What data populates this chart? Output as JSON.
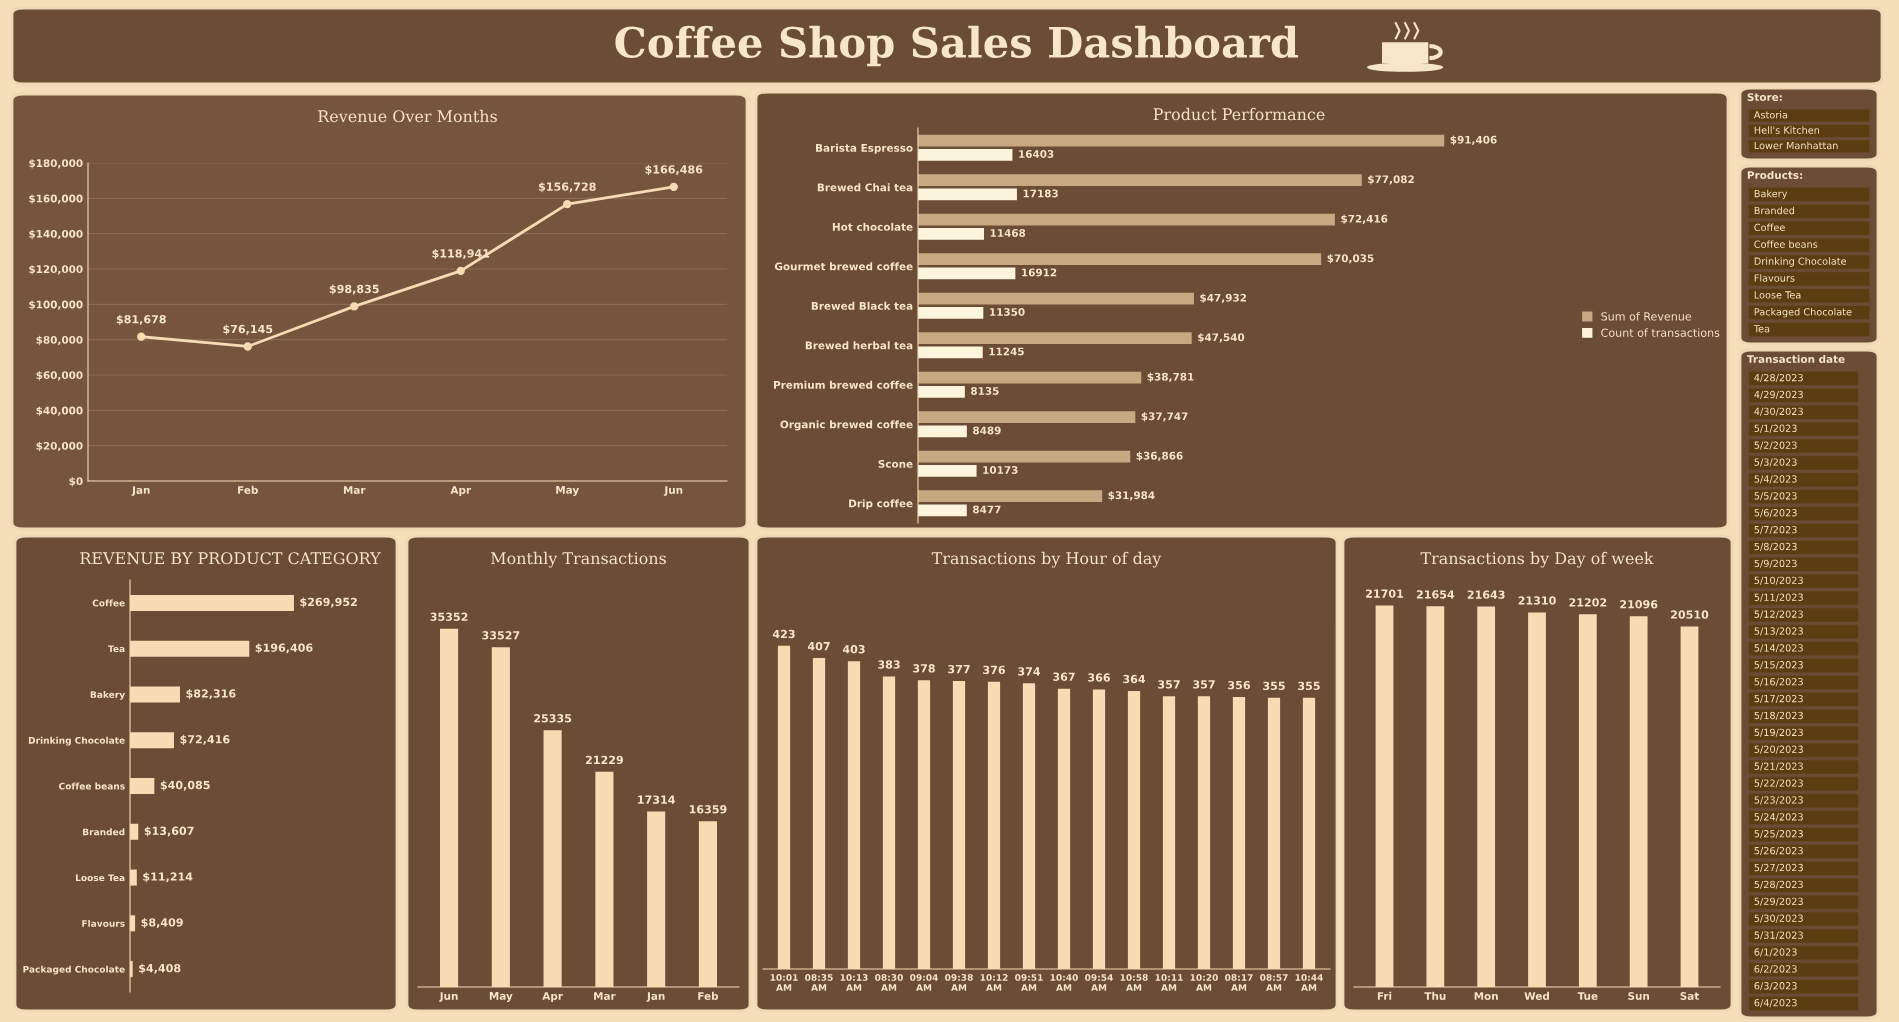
{
  "chart_data": [
    {
      "type": "other",
      "title": "Coffee Shop Sales Dashboard"
    },
    {
      "type": "line",
      "title": "Revenue Over Months",
      "categories": [
        "Jan",
        "Feb",
        "Mar",
        "Apr",
        "May",
        "Jun"
      ],
      "series": [
        {
          "color": "#f5dcb4",
          "values": [
            81678,
            76145,
            98835,
            118941,
            156728,
            166486
          ],
          "value_labels": [
            "$81,678",
            "$76,145",
            "$98,835",
            "$118,941",
            "$156,728",
            "$166,486"
          ]
        }
      ],
      "ylim": [
        0,
        180000
      ],
      "yticks": [
        {
          "value": 0,
          "label": "$0"
        },
        {
          "value": 20000,
          "label": "$20,000"
        },
        {
          "value": 40000,
          "label": "$40,000"
        },
        {
          "value": 60000,
          "label": "$60,000"
        },
        {
          "value": 80000,
          "label": "$80,000"
        },
        {
          "value": 100000,
          "label": "$100,000"
        },
        {
          "value": 120000,
          "label": "$120,000"
        },
        {
          "value": 140000,
          "label": "$140,000"
        },
        {
          "value": 160000,
          "label": "$160,000"
        },
        {
          "value": 180000,
          "label": "$180,000"
        }
      ],
      "grid": "y",
      "marker": "circle",
      "line_style": "solid"
    },
    {
      "type": "bar",
      "orientation": "horizontal",
      "title": "Product Performance",
      "categories": [
        "Barista Espresso",
        "Brewed Chai tea",
        "Hot chocolate",
        "Gourmet brewed coffee",
        "Brewed Black tea",
        "Brewed herbal tea",
        "Premium brewed coffee",
        "Organic brewed coffee",
        "Scone",
        "Drip coffee"
      ],
      "series": [
        {
          "name": "Sum of Revenue",
          "color": "#c8a882",
          "values": [
            91406,
            77082,
            72416,
            70035,
            47932,
            47540,
            38781,
            37747,
            36866,
            31984
          ],
          "value_labels": [
            "$91,406",
            "$77,082",
            "$72,416",
            "$70,035",
            "$47,932",
            "$47,540",
            "$38,781",
            "$37,747",
            "$36,866",
            "$31,984"
          ]
        },
        {
          "name": "Count of transactions",
          "color": "#fdf4de",
          "values": [
            16403,
            17183,
            11468,
            16912,
            11350,
            11245,
            8135,
            8489,
            10173,
            8477
          ],
          "value_labels": [
            "16403",
            "17183",
            "11468",
            "16912",
            "11350",
            "11245",
            "8135",
            "8489",
            "10173",
            "8477"
          ]
        }
      ],
      "legend": "right"
    },
    {
      "type": "other",
      "title": "Store:",
      "annotations": [
        "Astoria",
        "Hell's Kitchen",
        "Lower Manhattan"
      ]
    },
    {
      "type": "other",
      "title": "Products:",
      "annotations": [
        "Bakery",
        "Branded",
        "Coffee",
        "Coffee beans",
        "Drinking Chocolate",
        "Flavours",
        "Loose Tea",
        "Packaged Chocolate",
        "Tea"
      ]
    },
    {
      "type": "other",
      "title": "Transaction date",
      "annotations": [
        "4/28/2023",
        "4/29/2023",
        "4/30/2023",
        "5/1/2023",
        "5/2/2023",
        "5/3/2023",
        "5/4/2023",
        "5/5/2023",
        "5/6/2023",
        "5/7/2023",
        "5/8/2023",
        "5/9/2023",
        "5/10/2023",
        "5/11/2023",
        "5/12/2023",
        "5/13/2023",
        "5/14/2023",
        "5/15/2023",
        "5/16/2023",
        "5/17/2023",
        "5/18/2023",
        "5/19/2023",
        "5/20/2023",
        "5/21/2023",
        "5/22/2023",
        "5/23/2023",
        "5/24/2023",
        "5/25/2023",
        "5/26/2023",
        "5/27/2023",
        "5/28/2023",
        "5/29/2023",
        "5/30/2023",
        "5/31/2023",
        "6/1/2023",
        "6/2/2023",
        "6/3/2023",
        "6/4/2023"
      ]
    },
    {
      "type": "bar",
      "orientation": "horizontal",
      "title": "REVENUE BY PRODUCT CATEGORY",
      "categories": [
        "Coffee",
        "Tea",
        "Bakery",
        "Drinking Chocolate",
        "Coffee beans",
        "Branded",
        "Loose Tea",
        "Flavours",
        "Packaged Chocolate"
      ],
      "values": [
        269952,
        196406,
        82316,
        72416,
        40085,
        13607,
        11214,
        8409,
        4408
      ],
      "color": "#f5dcb4",
      "value_labels": [
        "$269,952",
        "$196,406",
        "$82,316",
        "$72,416",
        "$40,085",
        "$13,607",
        "$11,214",
        "$8,409",
        "$4,408"
      ]
    },
    {
      "type": "bar",
      "title": "Monthly Transactions",
      "categories": [
        "Jun",
        "May",
        "Apr",
        "Mar",
        "Jan",
        "Feb"
      ],
      "values": [
        35352,
        33527,
        25335,
        21229,
        17314,
        16359
      ],
      "color": "#f5dcb4",
      "data_labels": true
    },
    {
      "type": "bar",
      "title": "Transactions by Hour of day",
      "categories": [
        "10:01 AM",
        "08:35 AM",
        "10:13 AM",
        "08:30 AM",
        "09:04 AM",
        "09:38 AM",
        "10:12 AM",
        "09:51 AM",
        "10:40 AM",
        "09:54 AM",
        "10:58 AM",
        "10:11 AM",
        "10:20 AM",
        "08:17 AM",
        "08:57 AM",
        "10:44 AM"
      ],
      "values": [
        423,
        407,
        403,
        383,
        378,
        377,
        376,
        374,
        367,
        366,
        364,
        357,
        357,
        356,
        355,
        355
      ],
      "color": "#f5dcb4",
      "data_labels": true
    },
    {
      "type": "bar",
      "title": "Transactions by Day of week",
      "categories": [
        "Fri",
        "Thu",
        "Mon",
        "Wed",
        "Tue",
        "Sun",
        "Sat"
      ],
      "values": [
        21701,
        21654,
        21643,
        21310,
        21202,
        21096,
        20510
      ],
      "color": "#f5dcb4",
      "data_labels": true
    }
  ]
}
